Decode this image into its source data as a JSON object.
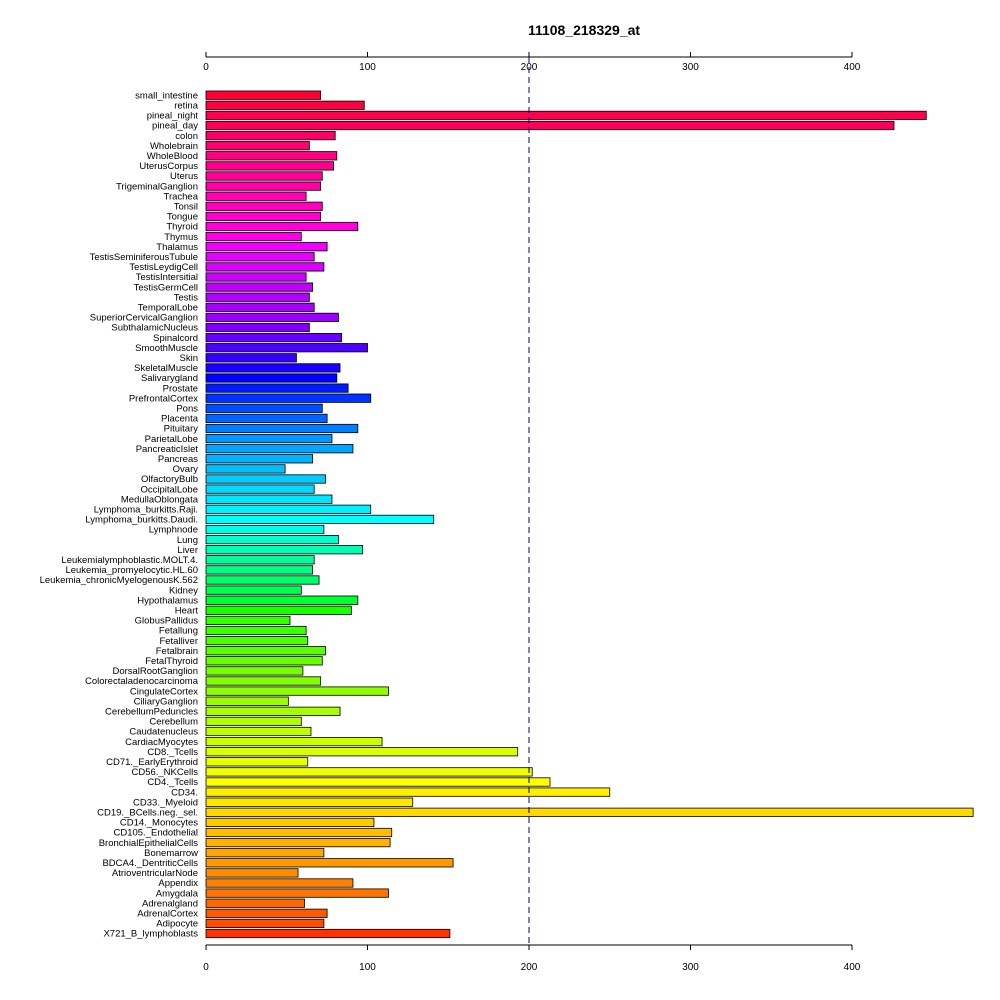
{
  "chart_data": {
    "type": "bar",
    "orientation": "horizontal",
    "title": "11108_218329_at",
    "xlabel": "",
    "ylabel": "",
    "xlim": [
      0,
      475
    ],
    "x_ticks": [
      0,
      100,
      200,
      300,
      400
    ],
    "x_tick_labels": [
      "0",
      "100",
      "200",
      "300",
      "400"
    ],
    "reference_line": 200,
    "grid": false,
    "categories": [
      "small_intestine",
      "retina",
      "pineal_night",
      "pineal_day",
      "colon",
      "Wholebrain",
      "WholeBlood",
      "UterusCorpus",
      "Uterus",
      "TrigeminalGanglion",
      "Trachea",
      "Tonsil",
      "Tongue",
      "Thyroid",
      "Thymus",
      "Thalamus",
      "TestisSeminiferousTubule",
      "TestisLeydigCell",
      "TestisIntersitial",
      "TestisGermCell",
      "Testis",
      "TemporalLobe",
      "SuperiorCervicalGanglion",
      "SubthalamicNucleus",
      "Spinalcord",
      "SmoothMuscle",
      "Skin",
      "SkeletalMuscle",
      "Salivarygland",
      "Prostate",
      "PrefrontalCortex",
      "Pons",
      "Placenta",
      "Pituitary",
      "ParietalLobe",
      "PancreaticIslet",
      "Pancreas",
      "Ovary",
      "OlfactoryBulb",
      "OccipitalLobe",
      "MedullaOblongata",
      "Lymphoma_burkitts.Raji.",
      "Lymphoma_burkitts.Daudi.",
      "Lymphnode",
      "Lung",
      "Liver",
      "Leukemialymphoblastic.MOLT.4.",
      "Leukemia_promyelocytic.HL.60",
      "Leukemia_chronicMyelogenousK.562",
      "Kidney",
      "Hypothalamus",
      "Heart",
      "GlobusPallidus",
      "Fetallung",
      "Fetalliver",
      "Fetalbrain",
      "FetalThyroid",
      "DorsalRootGanglion",
      "Colorectaladenocarcinoma",
      "CingulateCortex",
      "CiliaryGanglion",
      "CerebellumPeduncles",
      "Cerebellum",
      "Caudatenucleus",
      "CardiacMyocytes",
      "CD8._Tcells",
      "CD71._EarlyErythroid",
      "CD56._NKCells",
      "CD4._Tcells",
      "CD34.",
      "CD33._Myeloid",
      "CD19._BCells.neg._sel.",
      "CD14._Monocytes",
      "CD105._Endothelial",
      "BronchialEpithelialCells",
      "Bonemarrow",
      "BDCA4._DentriticCells",
      "AtrioventricularNode",
      "Appendix",
      "Amygdala",
      "Adrenalgland",
      "AdrenalCortex",
      "Adipocyte",
      "X721_B_lymphoblasts"
    ],
    "values": [
      71,
      98,
      446,
      426,
      80,
      64,
      81,
      79,
      72,
      71,
      62,
      72,
      71,
      94,
      59,
      75,
      67,
      73,
      62,
      66,
      64,
      67,
      82,
      64,
      84,
      100,
      56,
      83,
      81,
      88,
      102,
      72,
      75,
      94,
      78,
      91,
      66,
      49,
      74,
      67,
      78,
      102,
      141,
      73,
      82,
      97,
      67,
      66,
      70,
      59,
      94,
      90,
      52,
      62,
      63,
      74,
      72,
      60,
      71,
      113,
      51,
      83,
      59,
      65,
      109,
      193,
      63,
      202,
      213,
      250,
      128,
      475,
      104,
      115,
      114,
      73,
      153,
      57,
      91,
      113,
      61,
      75,
      73,
      151
    ],
    "colors": [
      "#FF0033",
      "#FF0040",
      "#FF004C",
      "#FF0059",
      "#FF0066",
      "#FF0073",
      "#FF007F",
      "#FF008C",
      "#FF0099",
      "#FF00A6",
      "#FF00B2",
      "#FF00BF",
      "#FF00CC",
      "#FF00D9",
      "#FF00E6",
      "#F200FF",
      "#E600FF",
      "#D900FF",
      "#CC00FF",
      "#BF00FF",
      "#B200FF",
      "#A600FF",
      "#9900FF",
      "#8000FF",
      "#6600FF",
      "#4C00FF",
      "#3300FF",
      "#1A00FF",
      "#0000FF",
      "#001AFF",
      "#0033FF",
      "#004CFF",
      "#0066FF",
      "#0080FF",
      "#0099FF",
      "#00A6FF",
      "#00B2FF",
      "#00BFFF",
      "#00CCFF",
      "#00D9FF",
      "#00E6FF",
      "#00F2FF",
      "#00FFFF",
      "#00FFE6",
      "#00FFCC",
      "#00FFB2",
      "#00FF99",
      "#00FF80",
      "#00FF66",
      "#00FF4C",
      "#00FF33",
      "#1AFF00",
      "#33FF00",
      "#40FF00",
      "#4CFF00",
      "#59FF00",
      "#66FF00",
      "#73FF00",
      "#80FF00",
      "#8CFF00",
      "#99FF00",
      "#A6FF00",
      "#B2FF00",
      "#BFFF00",
      "#CCFF00",
      "#D9FF00",
      "#E6FF00",
      "#F2FF00",
      "#FFFF00",
      "#FFEE00",
      "#FFE600",
      "#FFD900",
      "#FFCC00",
      "#FFBF00",
      "#FFB200",
      "#FFA600",
      "#FF9900",
      "#FF8C00",
      "#FF8000",
      "#FF7300",
      "#FF6600",
      "#FF5900",
      "#FF4C00",
      "#FF3300"
    ]
  }
}
